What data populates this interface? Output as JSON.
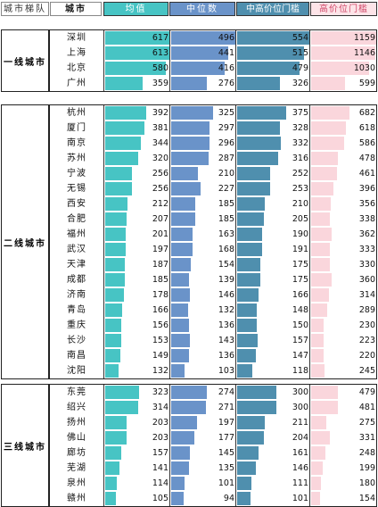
{
  "headers": [
    "城市梯队",
    "城市",
    "均值",
    "中位数",
    "中高价位门槛",
    "高价位门槛"
  ],
  "colors": {
    "mean": "#47c4c4",
    "median": "#6a93c9",
    "mid_high": "#4f8fae",
    "high": "#fad6dc",
    "header_mean": "#47c4c4",
    "header_median": "#6a93c9",
    "header_mid_high": "#4f8fae",
    "header_high": "#fde4e8"
  },
  "chart_data": {
    "type": "bar",
    "series_names": [
      "均值",
      "中位数",
      "中高价位门槛",
      "高价位门槛"
    ],
    "scale_max": [
      617,
      496,
      554,
      1159
    ],
    "tiers": [
      {
        "name": "一线城市",
        "rows": [
          {
            "city": "深圳",
            "values": [
              617,
              496,
              554,
              1159
            ]
          },
          {
            "city": "上海",
            "values": [
              613,
              441,
              515,
              1146
            ]
          },
          {
            "city": "北京",
            "values": [
              580,
              416,
              479,
              1030
            ]
          },
          {
            "city": "广州",
            "values": [
              359,
              276,
              326,
              599
            ]
          }
        ]
      },
      {
        "name": "二线城市",
        "rows": [
          {
            "city": "杭州",
            "values": [
              392,
              325,
              375,
              682
            ]
          },
          {
            "city": "厦门",
            "values": [
              381,
              297,
              328,
              618
            ]
          },
          {
            "city": "南京",
            "values": [
              344,
              296,
              332,
              586
            ]
          },
          {
            "city": "苏州",
            "values": [
              320,
              287,
              316,
              478
            ]
          },
          {
            "city": "宁波",
            "values": [
              256,
              210,
              252,
              461
            ]
          },
          {
            "city": "无锡",
            "values": [
              256,
              227,
              253,
              396
            ]
          },
          {
            "city": "西安",
            "values": [
              212,
              185,
              210,
              356
            ]
          },
          {
            "city": "合肥",
            "values": [
              207,
              185,
              205,
              338
            ]
          },
          {
            "city": "福州",
            "values": [
              201,
              163,
              190,
              362
            ]
          },
          {
            "city": "武汉",
            "values": [
              197,
              168,
              191,
              333
            ]
          },
          {
            "city": "天津",
            "values": [
              187,
              154,
              175,
              330
            ]
          },
          {
            "city": "成都",
            "values": [
              185,
              139,
              175,
              360
            ]
          },
          {
            "city": "济南",
            "values": [
              178,
              146,
              166,
              314
            ]
          },
          {
            "city": "青岛",
            "values": [
              166,
              132,
              148,
              289
            ]
          },
          {
            "city": "重庆",
            "values": [
              156,
              136,
              150,
              230
            ]
          },
          {
            "city": "长沙",
            "values": [
              153,
              143,
              157,
              223
            ]
          },
          {
            "city": "南昌",
            "values": [
              149,
              136,
              147,
              220
            ]
          },
          {
            "city": "沈阳",
            "values": [
              132,
              103,
              118,
              245
            ]
          }
        ]
      },
      {
        "name": "三线城市",
        "rows": [
          {
            "city": "东莞",
            "values": [
              323,
              274,
              300,
              479
            ]
          },
          {
            "city": "绍兴",
            "values": [
              314,
              271,
              300,
              481
            ]
          },
          {
            "city": "扬州",
            "values": [
              203,
              197,
              211,
              275
            ]
          },
          {
            "city": "佛山",
            "values": [
              203,
              177,
              204,
              331
            ]
          },
          {
            "city": "廊坊",
            "values": [
              157,
              145,
              161,
              248
            ]
          },
          {
            "city": "芜湖",
            "values": [
              141,
              135,
              146,
              199
            ]
          },
          {
            "city": "泉州",
            "values": [
              114,
              101,
              111,
              180
            ]
          },
          {
            "city": "赣州",
            "values": [
              105,
              94,
              101,
              154
            ]
          }
        ]
      }
    ]
  }
}
